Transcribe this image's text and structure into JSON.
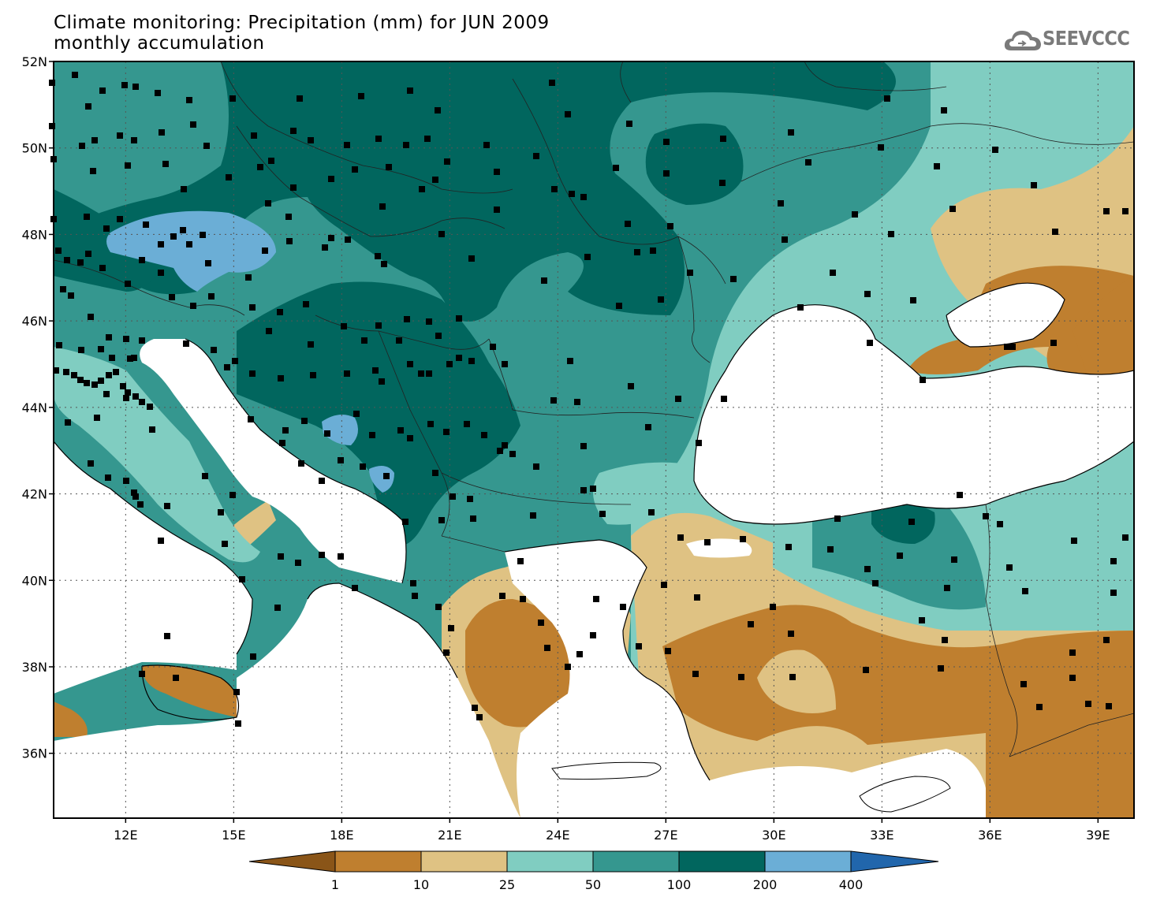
{
  "header": {
    "title_line1": "Climate monitoring: Precipitation (mm) for JUN 2009",
    "title_line2": "monthly accumulation",
    "logo_text": "SEEVCCC",
    "logo_icon": "cloud-icon"
  },
  "map": {
    "lon_range": [
      10,
      40
    ],
    "lat_range": [
      34.5,
      52
    ],
    "lat_ticks": [
      {
        "value": 52,
        "label": "52N"
      },
      {
        "value": 50,
        "label": "50N"
      },
      {
        "value": 48,
        "label": "48N"
      },
      {
        "value": 46,
        "label": "46N"
      },
      {
        "value": 44,
        "label": "44N"
      },
      {
        "value": 42,
        "label": "42N"
      },
      {
        "value": 40,
        "label": "40N"
      },
      {
        "value": 38,
        "label": "38N"
      },
      {
        "value": 36,
        "label": "36N"
      }
    ],
    "lon_ticks": [
      {
        "value": 12,
        "label": "12E"
      },
      {
        "value": 15,
        "label": "15E"
      },
      {
        "value": 18,
        "label": "18E"
      },
      {
        "value": 21,
        "label": "21E"
      },
      {
        "value": 24,
        "label": "24E"
      },
      {
        "value": 27,
        "label": "27E"
      },
      {
        "value": 30,
        "label": "30E"
      },
      {
        "value": 33,
        "label": "33E"
      },
      {
        "value": 36,
        "label": "36E"
      },
      {
        "value": 39,
        "label": "39E"
      }
    ]
  },
  "legend": {
    "labels": [
      "1",
      "10",
      "25",
      "50",
      "100",
      "200",
      "400"
    ],
    "colors": [
      "#8a5518",
      "#bf7f2f",
      "#dfc283",
      "#80cdc1",
      "#35978f",
      "#01665e",
      "#6baed6",
      "#2166ac"
    ]
  }
}
